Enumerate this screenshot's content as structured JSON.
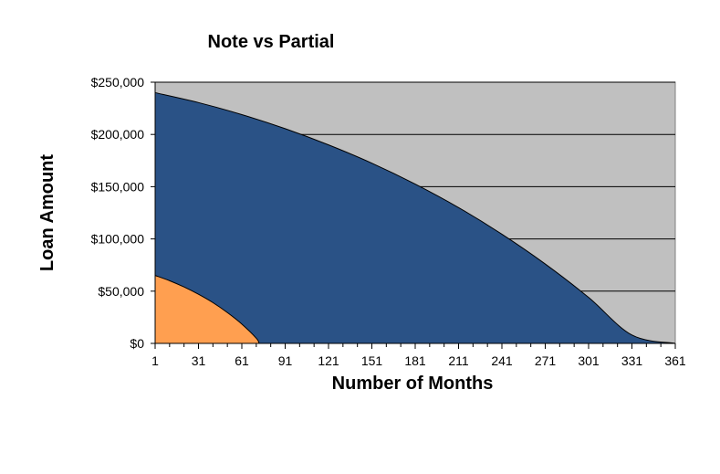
{
  "chart_data": {
    "type": "area",
    "title": "Note vs Partial",
    "xlabel": "Number of Months",
    "ylabel": "Loan Amount",
    "xlim": [
      1,
      361
    ],
    "ylim": [
      0,
      250000
    ],
    "x_ticks": [
      "1",
      "31",
      "61",
      "91",
      "121",
      "151",
      "181",
      "211",
      "241",
      "271",
      "301",
      "331",
      "361"
    ],
    "y_ticks": [
      "$0",
      "$50,000",
      "$100,000",
      "$150,000",
      "$200,000",
      "$250,000"
    ],
    "grid": true,
    "legend": "none",
    "plot_background": "#c0c0c0",
    "series": [
      {
        "color": "#2a5286",
        "x": [
          1,
          31,
          61,
          91,
          121,
          151,
          181,
          211,
          241,
          271,
          301,
          331,
          361
        ],
        "values": [
          240000,
          230500,
          219000,
          205500,
          190000,
          172500,
          152500,
          130000,
          104500,
          76000,
          44000,
          8000,
          0
        ]
      },
      {
        "color": "#ff9f50",
        "x": [
          1,
          11,
          21,
          31,
          41,
          51,
          61,
          71,
          73
        ],
        "values": [
          65000,
          60000,
          54000,
          47000,
          39000,
          29500,
          18500,
          5000,
          0
        ]
      }
    ]
  }
}
